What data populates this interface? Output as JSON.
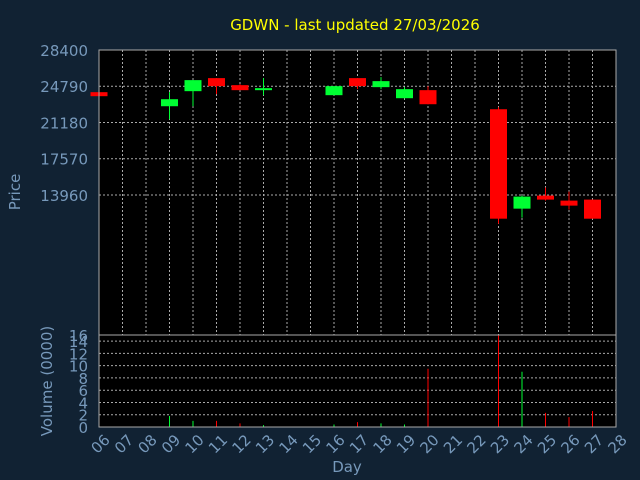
{
  "chart_data": {
    "type": "candlestick",
    "title": "GDWN - last updated 27/03/2026",
    "xlabel": "Day",
    "ylabel": "Price",
    "volume_label": "Volume (0000)",
    "ylim": [
      16,
      28400
    ],
    "price_ticks": [
      "28400",
      "24790",
      "21180",
      "17570",
      "13960",
      "16"
    ],
    "price_tick_values": [
      28400,
      24790,
      21180,
      17570,
      13960,
      16
    ],
    "volume_ylim": [
      0,
      15
    ],
    "volume_ticks": [
      "14",
      "12",
      "10",
      "8",
      "6",
      "4",
      "2",
      "0"
    ],
    "volume_tick_values": [
      14,
      12,
      10,
      8,
      6,
      4,
      2,
      0
    ],
    "x_ticks": [
      "06",
      "07",
      "08",
      "09",
      "10",
      "11",
      "12",
      "13",
      "14",
      "15",
      "16",
      "17",
      "18",
      "19",
      "20",
      "21",
      "22",
      "23",
      "24",
      "25",
      "26",
      "27",
      "28"
    ],
    "grid": true,
    "colors": {
      "background": "#112233",
      "plot": "#000000",
      "up": "#00ff33",
      "down": "#ff0000",
      "grid": "#aaaaaa",
      "title": "#ffff00",
      "labels": "#7799bb"
    },
    "candles": [
      {
        "day": "06",
        "open": 24200,
        "high": 24200,
        "low": 23800,
        "close": 23800
      },
      {
        "day": "09",
        "open": 22800,
        "high": 24200,
        "low": 21500,
        "close": 23500
      },
      {
        "day": "10",
        "open": 24300,
        "high": 25400,
        "low": 22800,
        "close": 25400
      },
      {
        "day": "11",
        "open": 25600,
        "high": 25600,
        "low": 24000,
        "close": 24800
      },
      {
        "day": "12",
        "open": 24900,
        "high": 25000,
        "low": 24400,
        "close": 24400
      },
      {
        "day": "13",
        "open": 24400,
        "high": 25600,
        "low": 23900,
        "close": 24600
      },
      {
        "day": "16",
        "open": 23900,
        "high": 24800,
        "low": 23900,
        "close": 24800
      },
      {
        "day": "17",
        "open": 25600,
        "high": 25600,
        "low": 24500,
        "close": 24800
      },
      {
        "day": "18",
        "open": 24700,
        "high": 25700,
        "low": 24500,
        "close": 25300
      },
      {
        "day": "19",
        "open": 23600,
        "high": 24700,
        "low": 23600,
        "close": 24500
      },
      {
        "day": "20",
        "open": 24400,
        "high": 24800,
        "low": 23000,
        "close": 23000
      },
      {
        "day": "23",
        "open": 22500,
        "high": 22700,
        "low": 11100,
        "close": 11600
      },
      {
        "day": "24",
        "open": 12600,
        "high": 13900,
        "low": 11700,
        "close": 13800
      },
      {
        "day": "25",
        "open": 13900,
        "high": 14700,
        "low": 13400,
        "close": 13500
      },
      {
        "day": "26",
        "open": 13400,
        "high": 14300,
        "low": 12500,
        "close": 12900
      },
      {
        "day": "27",
        "open": 13500,
        "high": 13500,
        "low": 11600,
        "close": 11600
      }
    ],
    "volumes": [
      {
        "day": "06",
        "value": 0.2,
        "direction": "down"
      },
      {
        "day": "09",
        "value": 1.8,
        "direction": "up"
      },
      {
        "day": "10",
        "value": 1.0,
        "direction": "up"
      },
      {
        "day": "11",
        "value": 1.0,
        "direction": "down"
      },
      {
        "day": "12",
        "value": 0.6,
        "direction": "down"
      },
      {
        "day": "13",
        "value": 0.3,
        "direction": "up"
      },
      {
        "day": "16",
        "value": 0.4,
        "direction": "up"
      },
      {
        "day": "17",
        "value": 0.8,
        "direction": "down"
      },
      {
        "day": "18",
        "value": 0.6,
        "direction": "up"
      },
      {
        "day": "19",
        "value": 0.4,
        "direction": "up"
      },
      {
        "day": "20",
        "value": 9.5,
        "direction": "down"
      },
      {
        "day": "23",
        "value": 15.0,
        "direction": "down"
      },
      {
        "day": "24",
        "value": 9.0,
        "direction": "up"
      },
      {
        "day": "25",
        "value": 2.3,
        "direction": "down"
      },
      {
        "day": "26",
        "value": 1.6,
        "direction": "down"
      },
      {
        "day": "27",
        "value": 2.6,
        "direction": "down"
      }
    ]
  }
}
